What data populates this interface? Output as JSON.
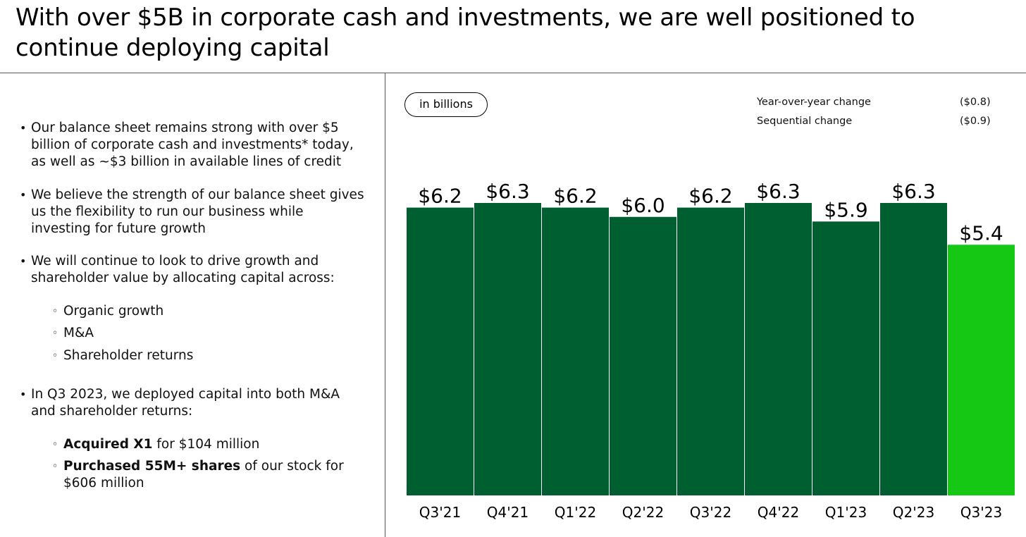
{
  "title": "With over $5B in corporate cash and investments, we are well positioned to continue deploying capital",
  "left": {
    "b1": "Our balance sheet remains strong with over $5 billion of corporate cash and investments* today, as well as ~$3 billion in available lines of credit",
    "b2": "We believe the strength of our balance sheet gives us the flexibility to run our business while investing for future growth",
    "b3": "We will continue to look to drive growth and shareholder value by allocating capital across:",
    "b3_sub": [
      "Organic growth",
      "M&A",
      "Shareholder returns"
    ],
    "b4": "In Q3 2023, we deployed capital into both M&A and shareholder returns:",
    "b4_sub1_bold": "Acquired X1",
    "b4_sub1_rest": " for $104 million",
    "b4_sub2_bold": "Purchased 55M+ shares",
    "b4_sub2_rest": " of our stock for $606 million"
  },
  "unit_pill": "in billions",
  "changes": {
    "yoy_label": "Year-over-year change",
    "yoy_value": "($0.8)",
    "seq_label": "Sequential change",
    "seq_value": "($0.9)"
  },
  "colors": {
    "bar": "#005f30",
    "highlight": "#14c814"
  },
  "chart_data": {
    "type": "bar",
    "categories": [
      "Q3'21",
      "Q4'21",
      "Q1'22",
      "Q2'22",
      "Q3'22",
      "Q4'22",
      "Q1'23",
      "Q2'23",
      "Q3'23"
    ],
    "values": [
      6.2,
      6.3,
      6.2,
      6.0,
      6.2,
      6.3,
      5.9,
      6.3,
      5.4
    ],
    "data_labels": [
      "$6.2",
      "$6.3",
      "$6.2",
      "$6.0",
      "$6.2",
      "$6.3",
      "$5.9",
      "$6.3",
      "$5.4"
    ],
    "highlight_index": 8,
    "ylim": [
      0,
      6.3
    ],
    "grid": false,
    "title": "",
    "xlabel": "",
    "ylabel": ""
  }
}
